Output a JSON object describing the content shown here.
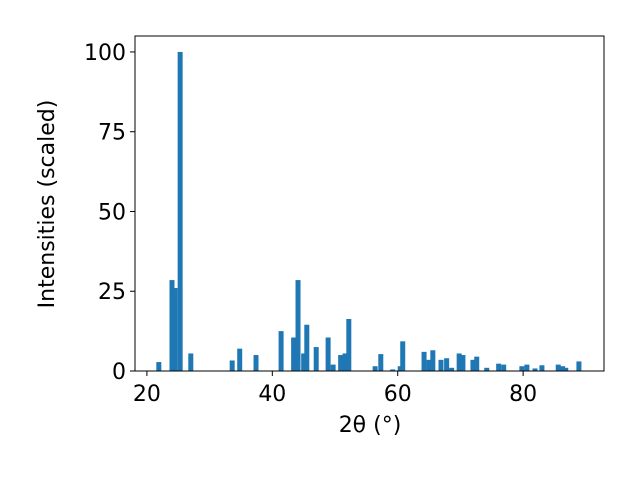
{
  "chart_data": {
    "type": "bar",
    "x_label": "2θ (°)",
    "y_label": "Intensities (scaled)",
    "color": "#1f77b4",
    "x": [
      21.9,
      24.0,
      24.5,
      25.3,
      27.0,
      33.6,
      34.8,
      37.4,
      41.4,
      43.4,
      44.1,
      45.0,
      45.5,
      47.0,
      48.9,
      49.7,
      50.9,
      51.6,
      52.2,
      56.4,
      57.3,
      59.2,
      60.4,
      60.8,
      64.2,
      65.0,
      65.6,
      66.9,
      67.8,
      68.6,
      69.8,
      70.4,
      72.0,
      72.6,
      74.2,
      76.1,
      76.9,
      79.8,
      80.6,
      81.9,
      83.0,
      85.6,
      86.3,
      86.8,
      88.9
    ],
    "values": [
      2.8,
      28.5,
      26,
      100,
      5.5,
      3.3,
      7,
      5,
      12.5,
      10.5,
      28.5,
      5.5,
      14.5,
      7.5,
      10.5,
      2,
      5,
      5.5,
      16.3,
      1.5,
      5.3,
      0.5,
      1.5,
      9.3,
      6,
      3.5,
      6.5,
      3.5,
      4,
      1,
      5.5,
      5,
      3.5,
      4.5,
      1,
      2.3,
      2,
      1.5,
      2,
      0.8,
      1.8,
      2,
      1.5,
      1,
      3
    ],
    "xlim": [
      18.1,
      92.9
    ],
    "ylim": [
      0,
      105
    ],
    "xticks": [
      20,
      40,
      60,
      80
    ],
    "yticks": [
      0,
      25,
      50,
      75,
      100
    ],
    "grid": false
  }
}
